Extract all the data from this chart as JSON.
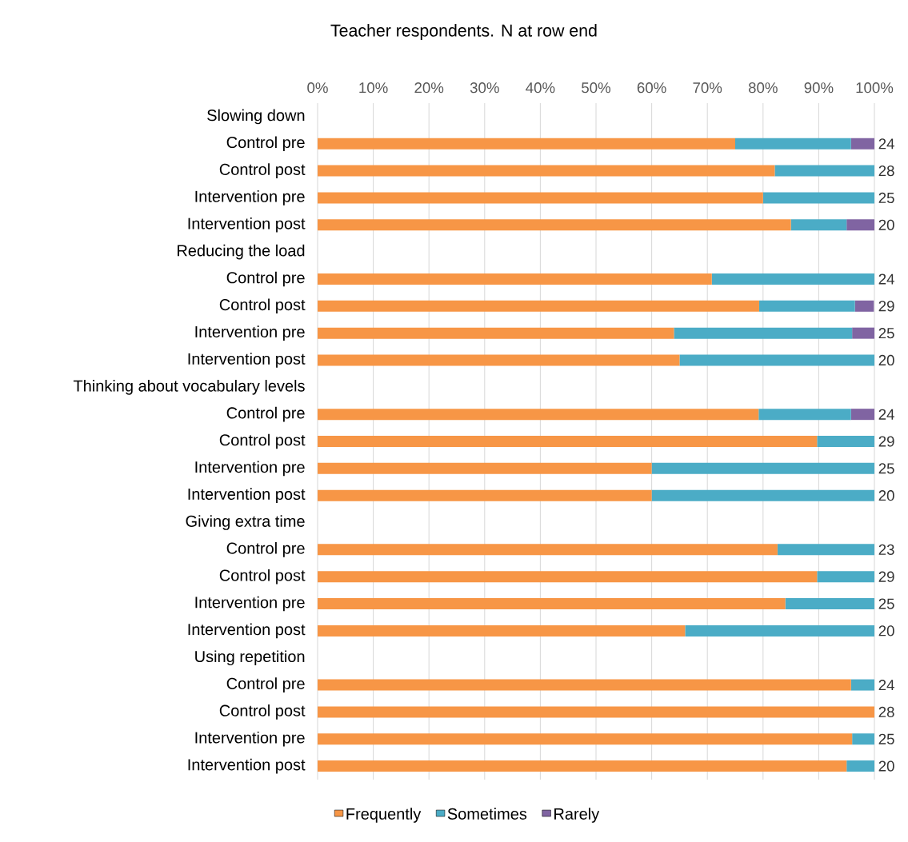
{
  "chart_data": {
    "type": "bar",
    "orientation": "horizontal",
    "stacked": true,
    "title": "Teacher respondents. N at row end",
    "categories": [
      "Slowing down",
      "Control pre",
      "Control post",
      "Intervention pre",
      "Intervention post",
      "Reducing the load",
      "Control pre",
      "Control post",
      "Intervention pre",
      "Intervention post",
      "Thinking about vocabulary levels",
      "Control pre",
      "Control post",
      "Intervention pre",
      "Intervention post",
      "Giving extra time",
      "Control pre",
      "Control post",
      "Intervention pre",
      "Intervention post",
      "Using repetition",
      "Control pre",
      "Control post",
      "Intervention pre",
      "Intervention post"
    ],
    "series": [
      {
        "name": "Frequently",
        "color": "#f79646",
        "values": [
          null,
          75,
          82.1,
          80,
          85,
          null,
          70.8,
          79.3,
          64,
          65,
          null,
          79.2,
          89.7,
          60,
          60,
          null,
          82.6,
          89.7,
          84,
          66,
          null,
          95.8,
          100,
          96,
          95
        ]
      },
      {
        "name": "Sometimes",
        "color": "#4bacc6",
        "values": [
          null,
          20.8,
          17.9,
          20,
          10,
          null,
          29.2,
          17.2,
          32,
          35,
          null,
          16.6,
          10.3,
          40,
          40,
          null,
          17.4,
          10.3,
          16,
          34,
          null,
          4.2,
          0,
          4,
          5
        ]
      },
      {
        "name": "Rarely",
        "color": "#8064a2",
        "values": [
          null,
          4.2,
          0,
          0,
          5,
          null,
          0,
          3.4,
          4,
          0,
          null,
          4.2,
          0,
          0,
          0,
          null,
          0,
          0,
          0,
          0,
          null,
          0,
          0,
          0,
          0
        ]
      }
    ],
    "annotations": [
      "24",
      "28",
      "25",
      "20",
      "24",
      "29",
      "25",
      "20",
      "24",
      "29",
      "25",
      "20",
      "23",
      "29",
      "25",
      "20",
      "24",
      "28",
      "25",
      "20"
    ],
    "xlim": [
      0,
      100
    ],
    "xticks": [
      {
        "value": 0,
        "label": "0%"
      },
      {
        "value": 10,
        "label": "10%"
      },
      {
        "value": 20,
        "label": "20%"
      },
      {
        "value": 30,
        "label": "30%"
      },
      {
        "value": 40,
        "label": "40%"
      },
      {
        "value": 50,
        "label": "50%"
      },
      {
        "value": 60,
        "label": "60%"
      },
      {
        "value": 70,
        "label": "70%"
      },
      {
        "value": 80,
        "label": "80%"
      },
      {
        "value": 90,
        "label": "90%"
      },
      {
        "value": 100,
        "label": "100%"
      }
    ],
    "grid": "x",
    "legend": "bottom"
  }
}
